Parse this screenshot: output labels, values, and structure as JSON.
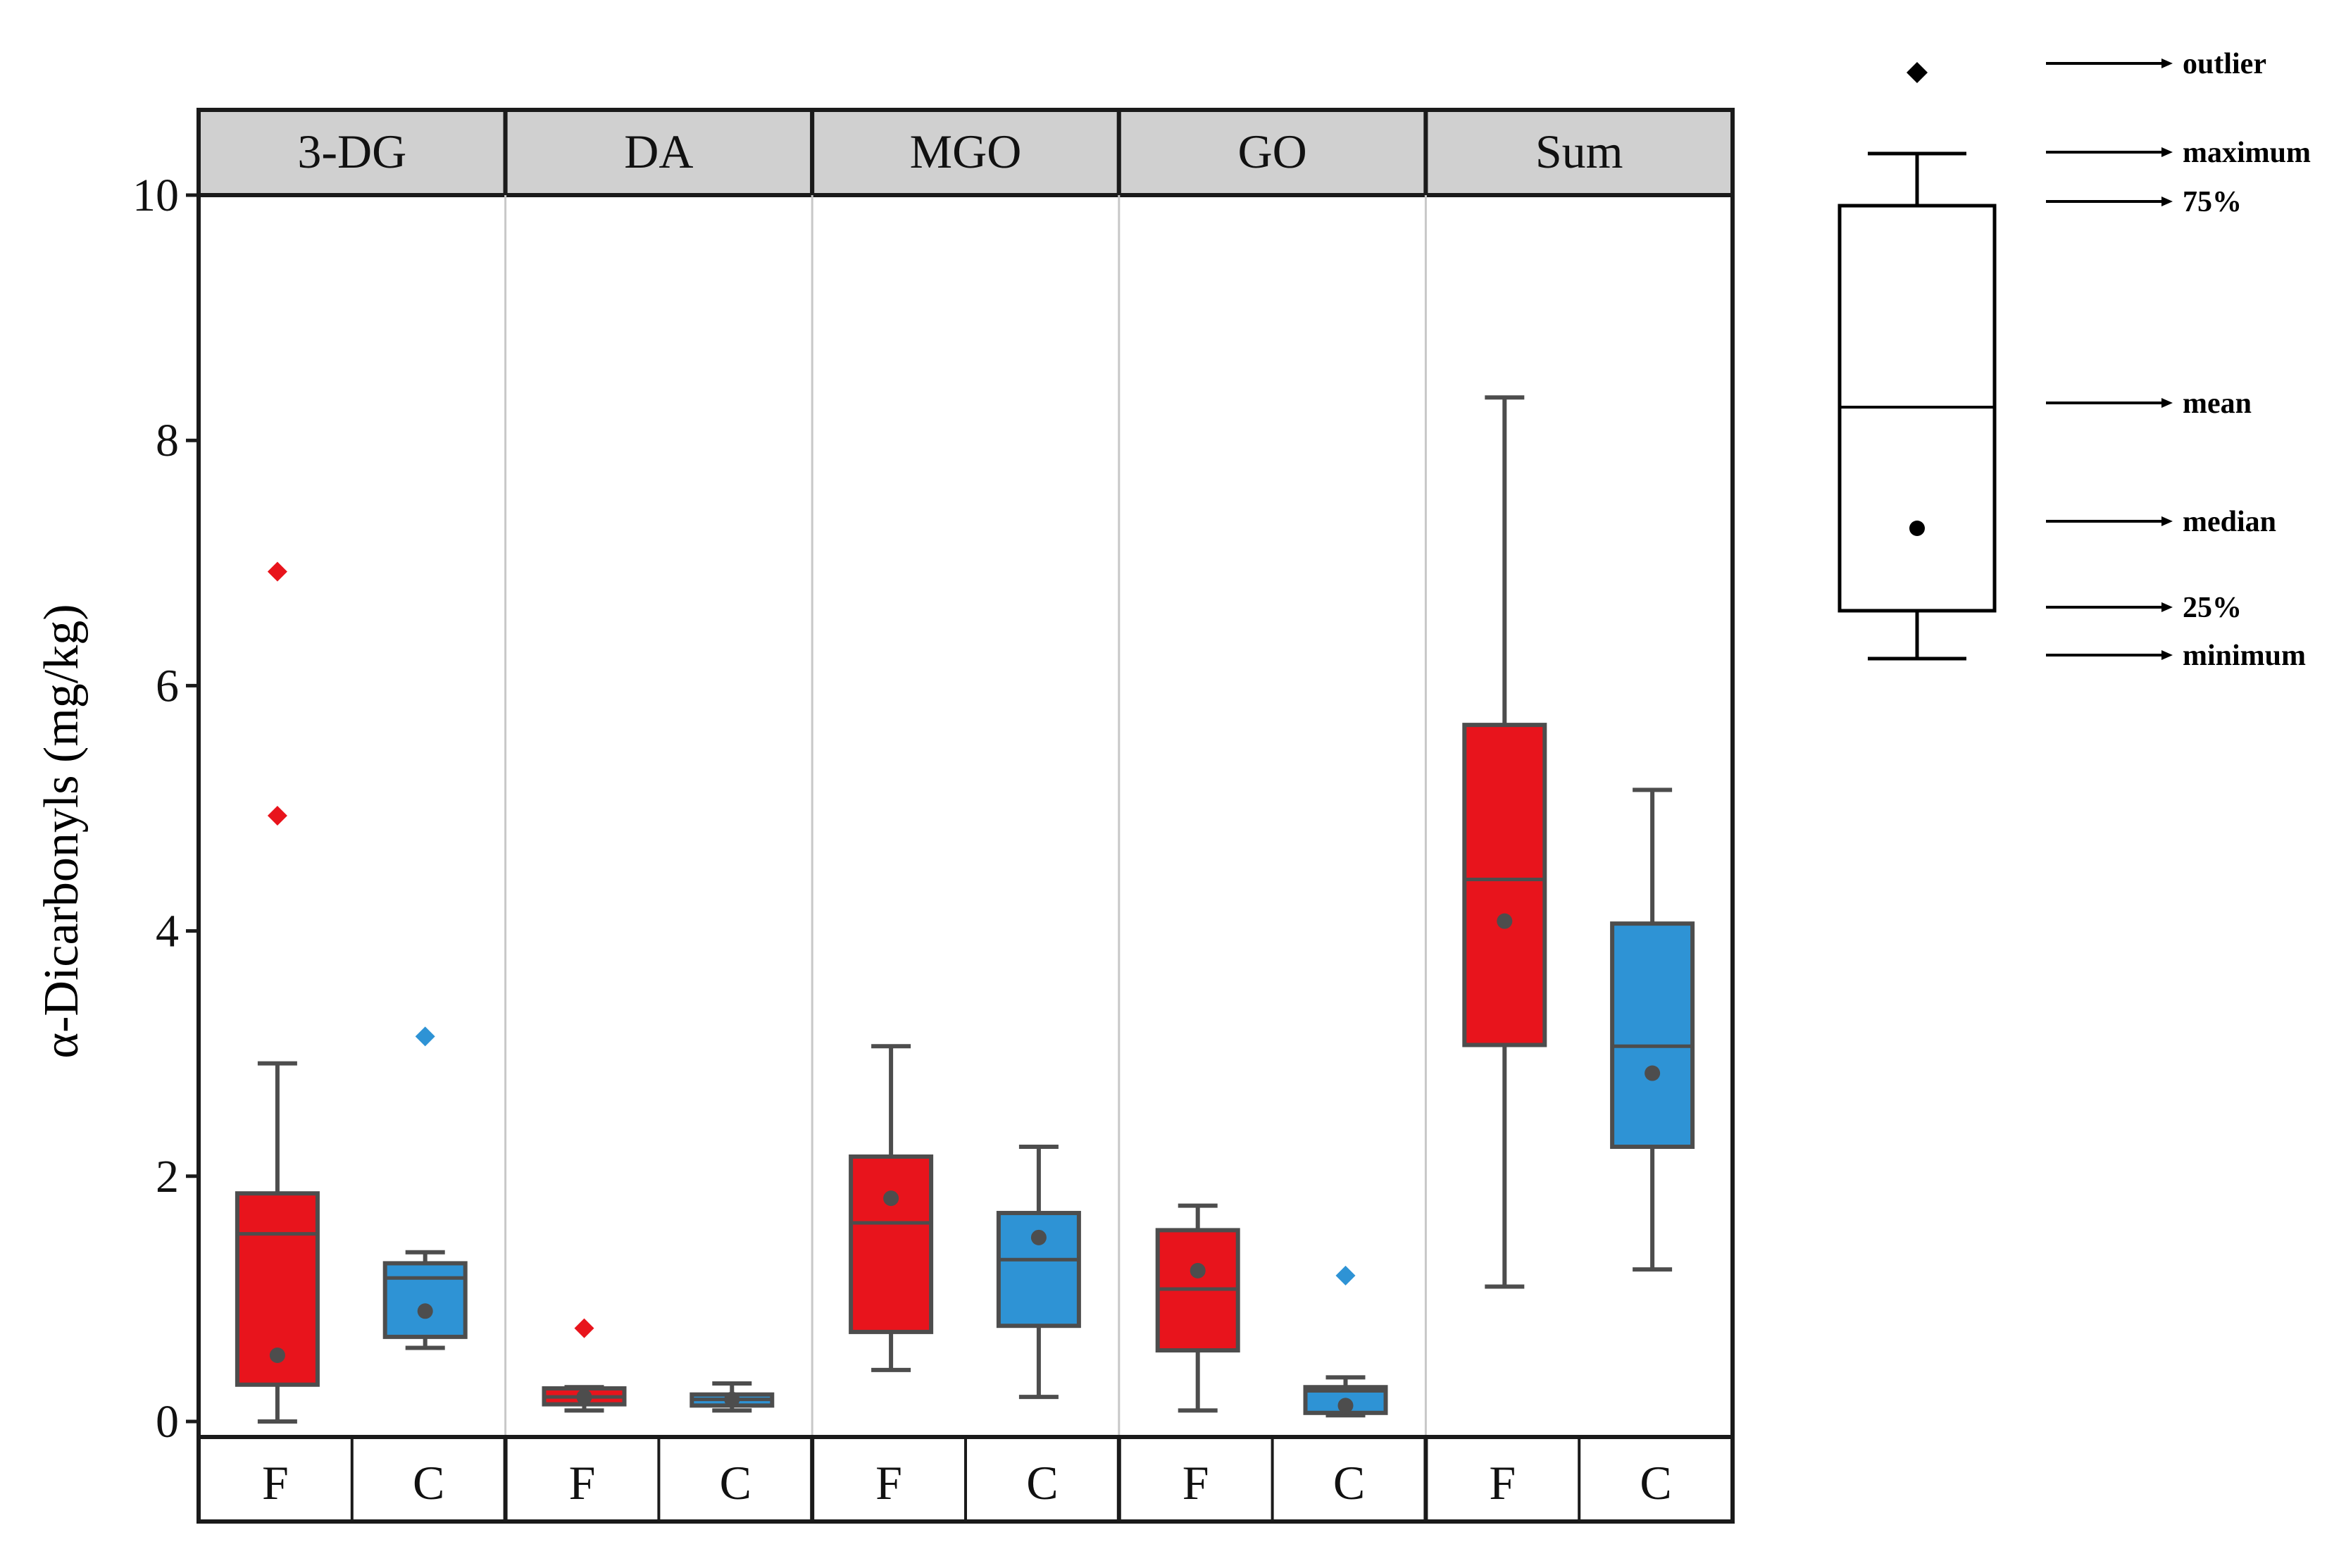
{
  "chart_data": {
    "type": "boxplot",
    "ylabel": "α-Dicarbonyls (mg/kg)",
    "ylim": [
      -0.1,
      10
    ],
    "yticks": [
      0,
      2,
      4,
      6,
      8,
      10
    ],
    "panels": [
      "3-DG",
      "DA",
      "MGO",
      "GO",
      "Sum"
    ],
    "groups": [
      "F",
      "C"
    ],
    "colors": {
      "F": "#e8141c",
      "C": "#2e93d5",
      "stroke": "#4d4d4d"
    },
    "boxes": [
      {
        "panel": "3-DG",
        "group": "F",
        "min": 0.0,
        "q1": 0.3,
        "mean": 1.53,
        "q3": 1.86,
        "max": 2.92,
        "median": 0.54,
        "outliers": [
          4.94,
          6.93
        ]
      },
      {
        "panel": "3-DG",
        "group": "C",
        "min": 0.6,
        "q1": 0.69,
        "mean": 1.17,
        "q3": 1.29,
        "max": 1.38,
        "median": 0.9,
        "outliers": [
          3.14
        ]
      },
      {
        "panel": "DA",
        "group": "F",
        "min": 0.09,
        "q1": 0.14,
        "mean": 0.2,
        "q3": 0.27,
        "max": 0.28,
        "median": 0.2,
        "outliers": [
          0.76
        ]
      },
      {
        "panel": "DA",
        "group": "C",
        "min": 0.09,
        "q1": 0.13,
        "mean": 0.18,
        "q3": 0.22,
        "max": 0.31,
        "median": 0.18,
        "outliers": []
      },
      {
        "panel": "MGO",
        "group": "F",
        "min": 0.42,
        "q1": 0.73,
        "mean": 1.62,
        "q3": 2.16,
        "max": 3.06,
        "median": 1.82,
        "outliers": []
      },
      {
        "panel": "MGO",
        "group": "C",
        "min": 0.2,
        "q1": 0.78,
        "mean": 1.32,
        "q3": 1.7,
        "max": 2.24,
        "median": 1.5,
        "outliers": []
      },
      {
        "panel": "GO",
        "group": "F",
        "min": 0.09,
        "q1": 0.58,
        "mean": 1.08,
        "q3": 1.56,
        "max": 1.76,
        "median": 1.23,
        "outliers": []
      },
      {
        "panel": "GO",
        "group": "C",
        "min": 0.05,
        "q1": 0.07,
        "mean": 0.25,
        "q3": 0.28,
        "max": 0.36,
        "median": 0.13,
        "outliers": [
          1.19
        ]
      },
      {
        "panel": "Sum",
        "group": "F",
        "min": 1.1,
        "q1": 3.07,
        "mean": 4.42,
        "q3": 5.68,
        "max": 8.35,
        "median": 4.08,
        "outliers": []
      },
      {
        "panel": "Sum",
        "group": "C",
        "min": 1.24,
        "q1": 2.24,
        "mean": 3.06,
        "q3": 4.06,
        "max": 5.15,
        "median": 2.84,
        "outliers": []
      }
    ]
  },
  "legend": {
    "labels": [
      "outlier",
      "maximum",
      "75%",
      "mean",
      "median",
      "25%",
      "minimum"
    ]
  }
}
